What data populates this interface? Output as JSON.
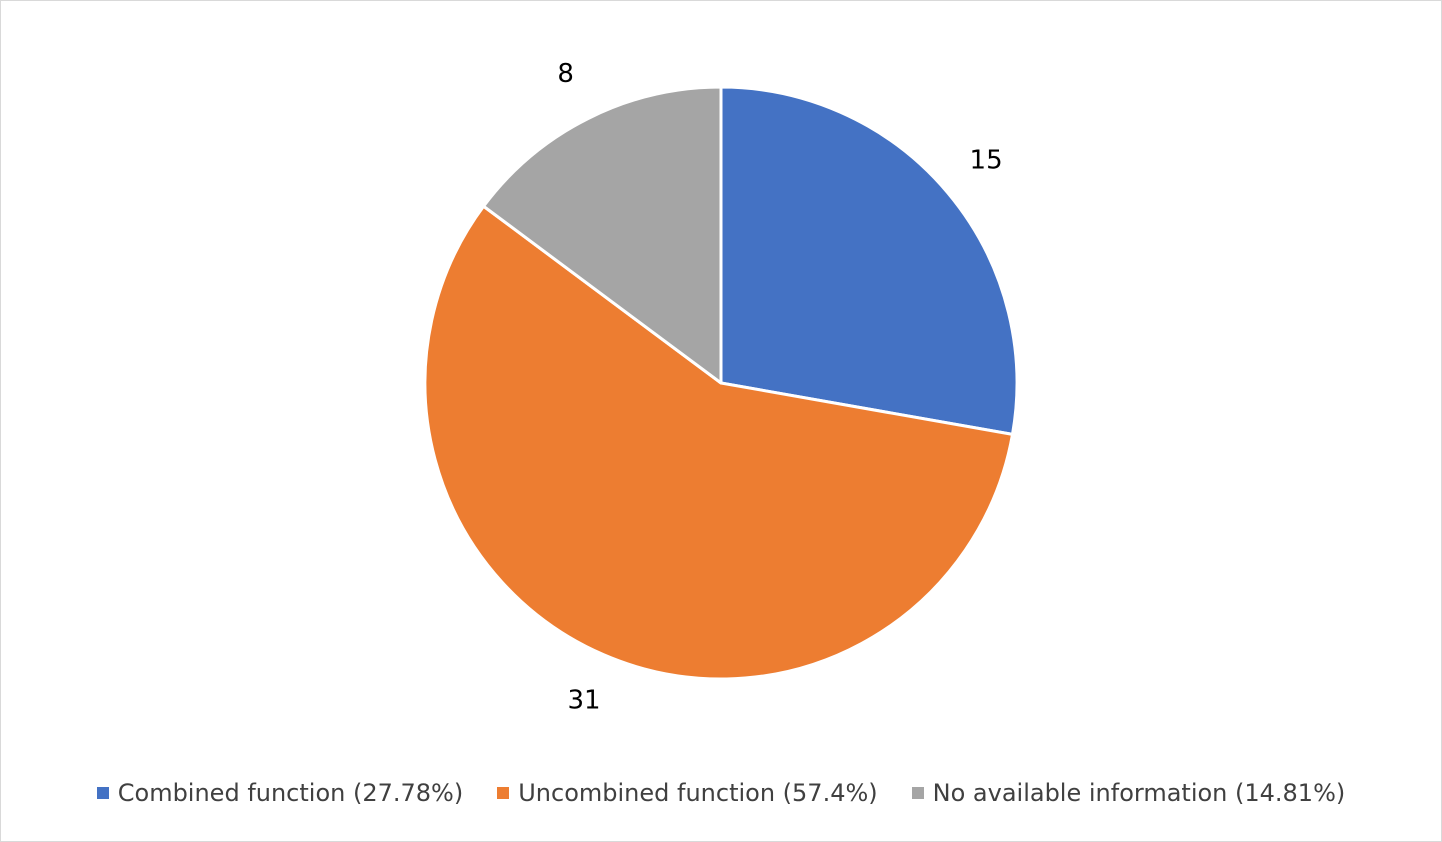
{
  "chart_data": {
    "type": "pie",
    "title": "",
    "start_angle_deg": 0,
    "direction": "clockwise",
    "slices": [
      {
        "name": "Combined function",
        "value": 15,
        "percent_label": "(27.78%)",
        "color": "#4472C4"
      },
      {
        "name": "Uncombined function",
        "value": 31,
        "percent_label": "(57.4%)",
        "color": "#ED7D31"
      },
      {
        "name": "No available information",
        "value": 8,
        "percent_label": "(14.81%)",
        "color": "#A5A5A5"
      }
    ],
    "legend": {
      "position": "bottom",
      "items": [
        {
          "label": "Combined function (27.78%)",
          "color": "#4472C4"
        },
        {
          "label": "Uncombined function (57.4%)",
          "color": "#ED7D31"
        },
        {
          "label": "No available information (14.81%)",
          "color": "#A5A5A5"
        }
      ]
    }
  }
}
